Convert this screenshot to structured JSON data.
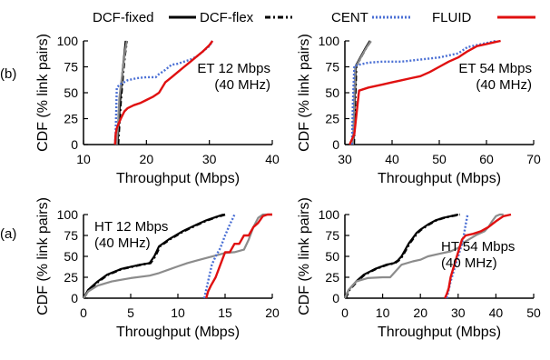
{
  "legend": [
    {
      "label": "DCF-fixed",
      "color": "#000000",
      "dash": "solid"
    },
    {
      "label": "DCF-flex",
      "color": "#000000",
      "dash": "dashdot"
    },
    {
      "label": "CENT",
      "color": "#8c8c8c",
      "dash": "solid"
    },
    {
      "label": "FLUID",
      "color": "#e01010",
      "dash": "solid"
    }
  ],
  "row_labels": {
    "top": "(b)",
    "bottom": "(a)"
  },
  "chart_data": [
    {
      "type": "line",
      "ylabel": "CDF (% link pairs)",
      "xlabel": "Throughput (Mbps)",
      "xlim": [
        10,
        40
      ],
      "ylim": [
        0,
        100
      ],
      "xticks": [
        10,
        20,
        30,
        40
      ],
      "yticks": [
        0,
        25,
        50,
        75,
        100
      ],
      "annotation": [
        "ET 12 Mbps",
        "(40 MHz)"
      ],
      "series": [
        {
          "name": "DCF-fixed",
          "x": [
            15.4,
            15.6,
            15.8,
            16.0,
            16.2,
            16.5,
            16.7
          ],
          "y": [
            0,
            20,
            40,
            55,
            70,
            88,
            100
          ]
        },
        {
          "name": "DCF-flex",
          "x": [
            15.5,
            15.7,
            15.9,
            16.1,
            16.3,
            16.6,
            16.9
          ],
          "y": [
            0,
            20,
            40,
            55,
            70,
            88,
            100
          ]
        },
        {
          "name": "CENT",
          "x": [
            15.3,
            15.5,
            15.7,
            16.0,
            16.3,
            16.6,
            16.9
          ],
          "y": [
            0,
            20,
            45,
            60,
            75,
            90,
            100
          ]
        },
        {
          "name": "CENT-blue",
          "x": [
            15.0,
            15.1,
            15.3,
            15.8,
            17.0,
            18.5,
            20.0,
            21.5,
            22.0,
            22.5,
            23.0,
            24.0,
            25.0,
            26.0,
            27.0,
            28.0,
            29.0,
            30.0,
            30.5
          ],
          "y": [
            0,
            10,
            55,
            58,
            62,
            64,
            65,
            65,
            68,
            70,
            72,
            77,
            78,
            80,
            82,
            85,
            90,
            95,
            100
          ]
        },
        {
          "name": "FLUID",
          "x": [
            15.0,
            15.1,
            15.3,
            16.0,
            16.5,
            17.0,
            18.0,
            19.0,
            20.0,
            21.0,
            22.0,
            22.5,
            23.0,
            24.0,
            25.0,
            26.0,
            27.0,
            28.0,
            29.0,
            30.0,
            30.5
          ],
          "y": [
            0,
            10,
            16,
            26,
            32,
            35,
            38,
            40,
            43,
            46,
            50,
            55,
            60,
            65,
            70,
            75,
            80,
            85,
            90,
            96,
            100
          ]
        }
      ]
    },
    {
      "type": "line",
      "ylabel": "CDF (% link pairs)",
      "xlabel": "Throughput (Mbps)",
      "xlim": [
        30,
        70
      ],
      "ylim": [
        0,
        100
      ],
      "xticks": [
        30,
        40,
        50,
        60,
        70
      ],
      "yticks": [
        0,
        25,
        50,
        75,
        100
      ],
      "annotation": [
        "ET 54 Mbps",
        "(40 MHz)"
      ],
      "series": [
        {
          "name": "DCF-fixed",
          "x": [
            31.8,
            32.0,
            32.3,
            32.8,
            33.5,
            34.5,
            35.3
          ],
          "y": [
            0,
            30,
            76,
            80,
            86,
            94,
            100
          ]
        },
        {
          "name": "DCF-flex",
          "x": [
            31.9,
            32.1,
            32.4,
            32.9,
            33.6,
            34.6,
            35.5
          ],
          "y": [
            0,
            30,
            76,
            80,
            86,
            94,
            100
          ]
        },
        {
          "name": "CENT",
          "x": [
            31.7,
            31.9,
            32.2,
            32.7,
            33.5,
            34.5,
            35.5
          ],
          "y": [
            0,
            30,
            75,
            78,
            85,
            93,
            100
          ]
        },
        {
          "name": "CENT-blue",
          "x": [
            31.5,
            31.7,
            32.0,
            33.0,
            35.0,
            38.0,
            42.0,
            46.0,
            50.0,
            54.0,
            56.0,
            58.0,
            60.0,
            62.0
          ],
          "y": [
            0,
            40,
            76,
            77,
            79,
            80,
            80,
            82,
            84,
            88,
            94,
            96,
            98,
            100
          ]
        },
        {
          "name": "FLUID",
          "x": [
            31.0,
            31.5,
            32.0,
            33.0,
            35.0,
            38.0,
            40.0,
            42.0,
            44.0,
            46.0,
            48.0,
            50.0,
            52.0,
            54.0,
            56.0,
            58.0,
            60.0,
            62.0,
            63.0
          ],
          "y": [
            0,
            5,
            10,
            52,
            55,
            58,
            60,
            62,
            64,
            66,
            70,
            75,
            80,
            84,
            90,
            95,
            97,
            99,
            100
          ]
        }
      ]
    },
    {
      "type": "line",
      "ylabel": "CDF (% link pairs)",
      "xlabel": "Throughput (Mbps)",
      "xlim": [
        0,
        20
      ],
      "ylim": [
        0,
        100
      ],
      "xticks": [
        0,
        5,
        10,
        15,
        20
      ],
      "yticks": [
        0,
        25,
        50,
        75,
        100
      ],
      "annotation": [
        "HT 12 Mbps",
        "(40 MHz)"
      ],
      "series": [
        {
          "name": "DCF-fixed",
          "x": [
            0.0,
            0.5,
            1.5,
            2.5,
            4.0,
            6.0,
            7.0,
            7.5,
            8.0,
            9.0,
            10.5,
            12.0,
            13.0,
            14.0,
            14.8
          ],
          "y": [
            0,
            10,
            20,
            28,
            35,
            40,
            42,
            50,
            62,
            70,
            80,
            88,
            93,
            97,
            100
          ]
        },
        {
          "name": "DCF-flex",
          "x": [
            0.0,
            0.6,
            1.6,
            2.6,
            4.1,
            6.1,
            7.1,
            7.6,
            8.1,
            9.1,
            10.6,
            12.1,
            13.1,
            14.1,
            15.0
          ],
          "y": [
            0,
            10,
            20,
            28,
            35,
            40,
            42,
            50,
            62,
            70,
            80,
            88,
            93,
            97,
            100
          ]
        },
        {
          "name": "CENT",
          "x": [
            0.0,
            0.5,
            1.5,
            3.0,
            5.0,
            7.0,
            8.0,
            9.0,
            10.0,
            11.0,
            12.0,
            13.0,
            14.0,
            15.0,
            16.0,
            17.0,
            17.5,
            18.0,
            18.5,
            19.0,
            19.5,
            20.0
          ],
          "y": [
            0,
            8,
            15,
            20,
            24,
            27,
            30,
            34,
            38,
            42,
            45,
            48,
            51,
            54,
            55,
            58,
            70,
            85,
            96,
            100,
            100,
            100
          ]
        },
        {
          "name": "CENT-blue",
          "x": [
            12.8,
            13.0,
            13.3,
            13.6,
            14.0,
            14.5,
            15.0,
            15.5,
            15.8,
            16.0
          ],
          "y": [
            0,
            10,
            25,
            40,
            50,
            60,
            75,
            88,
            95,
            100
          ]
        },
        {
          "name": "FLUID",
          "x": [
            13.0,
            13.2,
            13.5,
            14.0,
            14.5,
            15.0,
            15.5,
            16.0,
            16.5,
            17.0,
            17.5,
            18.0,
            18.5,
            19.0,
            19.5,
            20.0
          ],
          "y": [
            0,
            8,
            15,
            25,
            40,
            55,
            55,
            65,
            65,
            75,
            75,
            85,
            90,
            98,
            100,
            100
          ]
        }
      ]
    },
    {
      "type": "line",
      "ylabel": "CDF (% link pairs)",
      "xlabel": "Throughput (Mbps)",
      "xlim": [
        0,
        50
      ],
      "ylim": [
        0,
        100
      ],
      "xticks": [
        0,
        10,
        20,
        30,
        40,
        50
      ],
      "yticks": [
        0,
        25,
        50,
        75,
        100
      ],
      "annotation": [
        "HT 54 Mbps",
        "(40 MHz)"
      ],
      "series": [
        {
          "name": "DCF-fixed",
          "x": [
            0.0,
            1.0,
            3.0,
            5.0,
            8.0,
            11.0,
            13.0,
            14.0,
            15.0,
            16.0,
            17.0,
            18.0,
            19.0,
            20.0,
            22.0,
            24.0,
            26.0,
            28.0,
            30.0
          ],
          "y": [
            0,
            10,
            20,
            28,
            35,
            40,
            42,
            45,
            50,
            58,
            66,
            72,
            78,
            82,
            88,
            93,
            96,
            98,
            100
          ]
        },
        {
          "name": "DCF-flex",
          "x": [
            0.2,
            1.2,
            3.2,
            5.2,
            8.2,
            11.2,
            13.2,
            14.2,
            15.2,
            16.2,
            17.2,
            18.2,
            19.2,
            20.2,
            22.2,
            24.2,
            26.2,
            28.2,
            30.5
          ],
          "y": [
            0,
            10,
            20,
            28,
            35,
            40,
            42,
            45,
            50,
            58,
            66,
            72,
            78,
            82,
            88,
            93,
            96,
            98,
            100
          ]
        },
        {
          "name": "CENT",
          "x": [
            0.0,
            1.0,
            3.0,
            6.0,
            10.0,
            12.0,
            13.0,
            15.0,
            18.0,
            20.0,
            22.0,
            25.0,
            28.0,
            30.0,
            32.0,
            35.0,
            37.0,
            38.0,
            39.0,
            40.0,
            41.0,
            42.0
          ],
          "y": [
            0,
            10,
            20,
            24,
            25,
            25,
            30,
            40,
            44,
            46,
            50,
            53,
            56,
            60,
            68,
            76,
            80,
            85,
            92,
            98,
            100,
            100
          ]
        },
        {
          "name": "CENT-blue",
          "x": [
            27.0,
            27.5,
            28.0,
            29.0,
            30.0,
            31.0,
            31.5,
            32.0,
            32.5
          ],
          "y": [
            0,
            10,
            20,
            35,
            50,
            65,
            75,
            88,
            100
          ]
        },
        {
          "name": "FLUID",
          "x": [
            26.5,
            27.0,
            27.5,
            28.0,
            29.0,
            30.0,
            31.0,
            32.0,
            34.0,
            36.0,
            38.0,
            40.0,
            42.0,
            44.0
          ],
          "y": [
            0,
            5,
            12,
            25,
            40,
            55,
            70,
            75,
            77,
            80,
            85,
            92,
            98,
            100
          ]
        }
      ]
    }
  ]
}
